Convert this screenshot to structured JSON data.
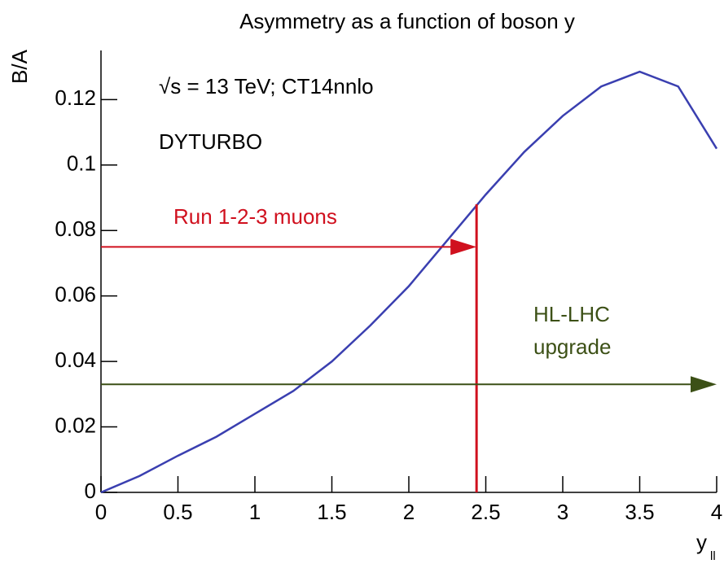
{
  "chart_data": {
    "type": "line",
    "title": "Asymmetry as a function of boson y",
    "y_label": "B/A",
    "x_label": "y",
    "x_label_sub": "ll",
    "texts": [
      "√s = 13 TeV; CT14nnlo",
      "DYTURBO"
    ],
    "x": [
      0,
      0.25,
      0.5,
      0.75,
      1,
      1.25,
      1.5,
      1.75,
      2,
      2.25,
      2.5,
      2.75,
      3,
      3.25,
      3.5,
      3.75,
      4
    ],
    "series": [
      {
        "color": "#3a3fb0",
        "values": [
          0,
          0.005,
          0.0112,
          0.017,
          0.024,
          0.031,
          0.04,
          0.051,
          0.063,
          0.077,
          0.091,
          0.104,
          0.115,
          0.124,
          0.1285,
          0.124,
          0.105
        ]
      }
    ],
    "xlim": [
      0,
      4
    ],
    "ylim": [
      0,
      0.135
    ],
    "xticks": [
      0,
      0.5,
      1,
      1.5,
      2,
      2.5,
      3,
      3.5,
      4
    ],
    "yticks": [
      0,
      0.02,
      0.04,
      0.06,
      0.08,
      0.1,
      0.12
    ],
    "acceptance": [
      {
        "label": [
          "Run 1-2-3 muons"
        ],
        "color": "#d0101e",
        "y_max": 2.44,
        "arrow_level": 0.075,
        "cut_top": 0.088
      },
      {
        "label": [
          "HL-LHC",
          "upgrade"
        ],
        "color": "#3c5016",
        "y_max": 4,
        "arrow_level": 0.033
      }
    ]
  }
}
